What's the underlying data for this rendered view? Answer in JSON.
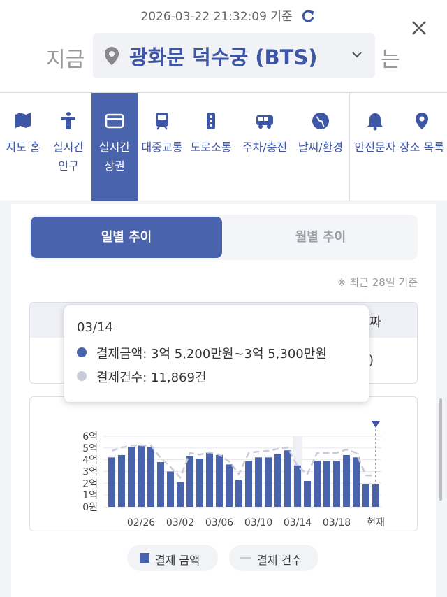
{
  "header": {
    "timestamp": "2026-03-22 21:32:09 기준",
    "prefix": "지금",
    "place": "광화문 덕수궁 (BTS)",
    "suffix": "는"
  },
  "tabs": [
    "지도 홈",
    "실시간 인구",
    "실시간 상권",
    "대중교통",
    "도로소통",
    "주차/충전",
    "날씨/환경",
    "안전문자",
    "장소 목록"
  ],
  "active_tab": 2,
  "toggle": {
    "options": [
      "일별 추이",
      "월별 추이"
    ],
    "active": 0
  },
  "note": "※ 최근 28일 기준",
  "table": {
    "header": "짜",
    "row": ")"
  },
  "tooltip": {
    "date": "03/14",
    "lines": [
      "결제금액: 3억 5,200만원~3억 5,300만원",
      "결제건수: 11,869건"
    ]
  },
  "chart_data": {
    "type": "bar",
    "categories": [
      null,
      null,
      null,
      "02/26",
      null,
      null,
      null,
      "03/02",
      null,
      null,
      null,
      "03/06",
      null,
      null,
      null,
      "03/10",
      null,
      null,
      null,
      "03/14",
      null,
      null,
      null,
      "03/18",
      null,
      null,
      null,
      "현재"
    ],
    "series": [
      {
        "name": "결제 금액",
        "color": "#4a63ad",
        "values": [
          4.2,
          4.4,
          5.1,
          5.2,
          5.1,
          3.8,
          3.0,
          2.1,
          4.3,
          4.1,
          4.6,
          4.4,
          3.6,
          2.3,
          3.9,
          4.2,
          4.2,
          4.5,
          4.8,
          3.52,
          2.2,
          3.9,
          3.9,
          3.9,
          4.4,
          4.2,
          1.9,
          1.9
        ]
      },
      {
        "name": "결제 건수",
        "color": "#c9ccd8",
        "axis": "y2",
        "values": [
          16400,
          17400,
          18000,
          18000,
          18000,
          14300,
          11700,
          8600,
          15800,
          15300,
          16000,
          15300,
          13300,
          9600,
          15800,
          16200,
          16400,
          17000,
          17400,
          11869,
          9600,
          15800,
          15800,
          15800,
          16800,
          15800,
          9200,
          9200
        ]
      }
    ],
    "ylim": [
      0,
      6
    ],
    "yticks": [
      {
        "value": 0,
        "label": "0원"
      },
      {
        "value": 1,
        "label": "1억"
      },
      {
        "value": 2,
        "label": "2억"
      },
      {
        "value": 3,
        "label": "3억"
      },
      {
        "value": 4,
        "label": "4억"
      },
      {
        "value": 5,
        "label": "5억"
      },
      {
        "value": 6,
        "label": "6억"
      }
    ],
    "y2lim": [
      0,
      20700
    ],
    "grid": true
  }
}
